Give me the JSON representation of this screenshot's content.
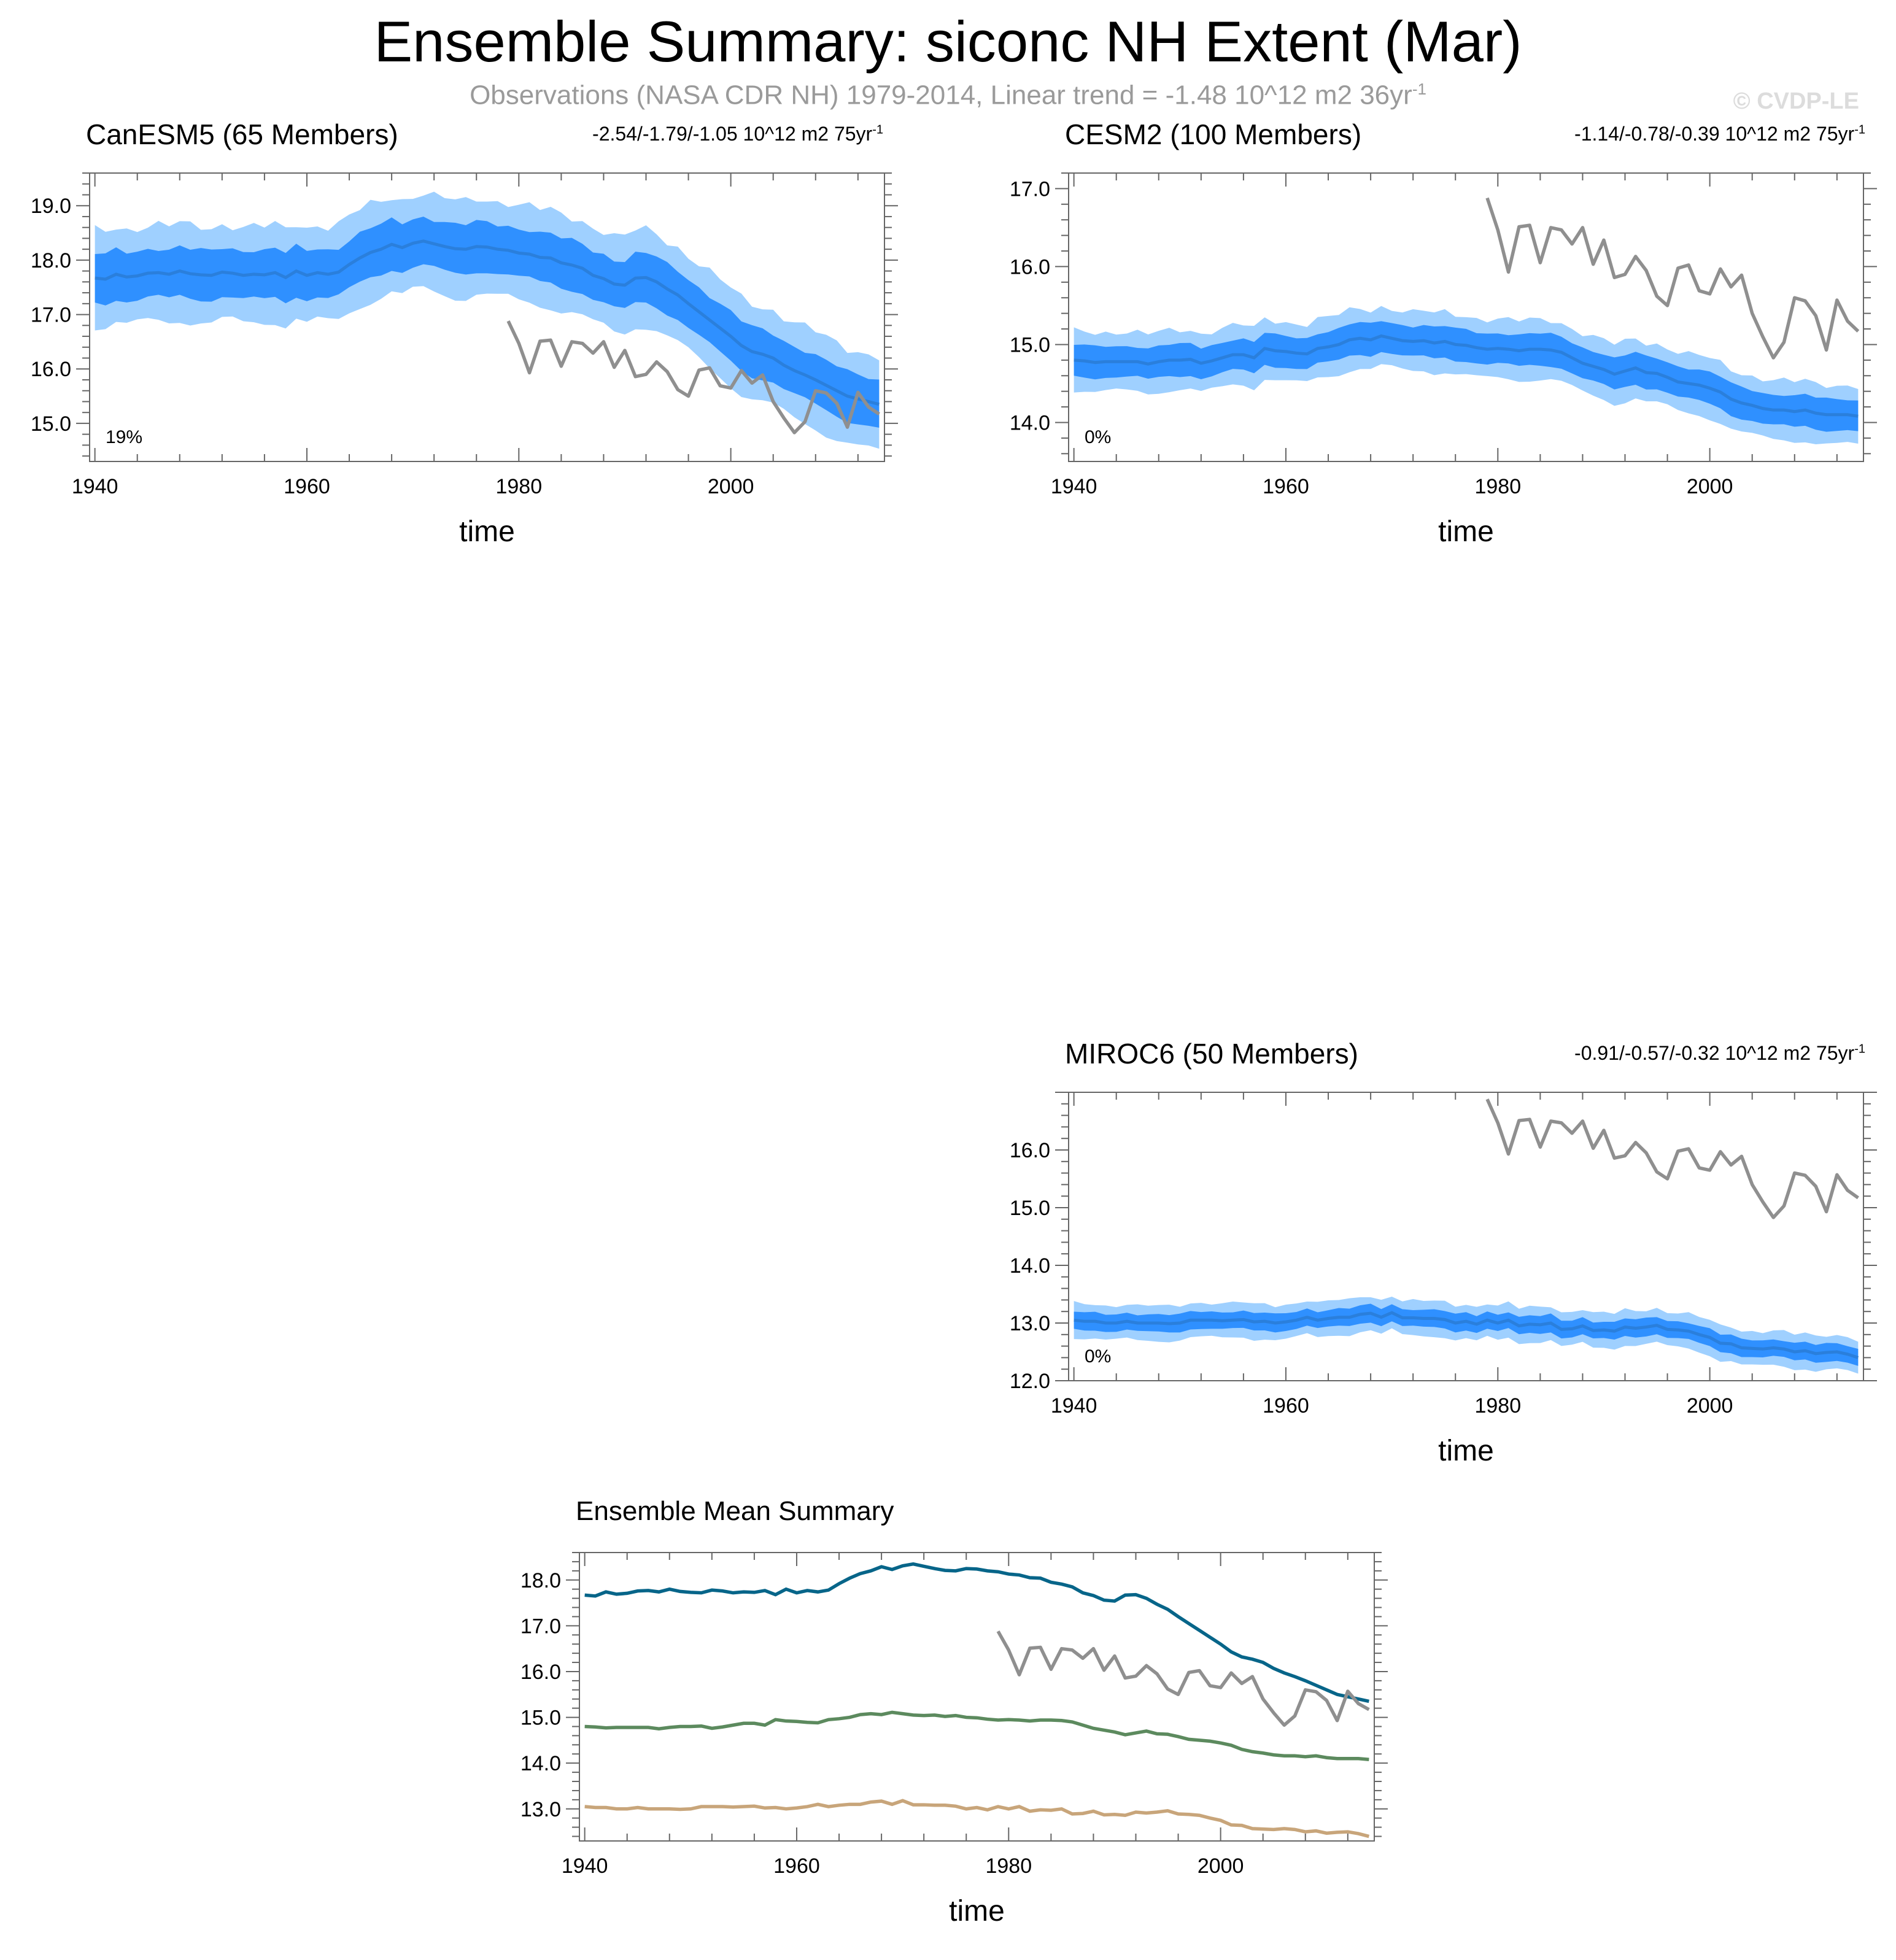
{
  "page": {
    "title": "Ensemble Summary: siconc NH Extent (Mar)",
    "subtitle": "Observations (NASA CDR NH) 1979-2014, Linear trend = -1.48 10^12 m2 36yr",
    "subtitle_sup": "-1",
    "watermark": "© CVDP-LE"
  },
  "colors": {
    "outer_band": "#9fd0ff",
    "inner_band": "#2f90ff",
    "mean_line": "#2a7fdc",
    "obs": "#8f8f8f",
    "canesm5": "#076589",
    "cesm2": "#5c8a5e",
    "miroc6": "#c8a57a"
  },
  "chart_data": [
    {
      "id": "canesm5",
      "type": "line",
      "title": "CanESM5 (65 Members)",
      "title_color": "#076589",
      "trend_label": "-2.54/-1.79/-1.05 10^12 m2 75yr",
      "trend_sup": "-1",
      "percent_label": "19%",
      "xlabel": "time",
      "xlim": [
        1939.5,
        2014.5
      ],
      "ylim": [
        14.3,
        19.6
      ],
      "xticks": [
        1940,
        1960,
        1980,
        2000
      ],
      "yticks": [
        15.0,
        16.0,
        17.0,
        18.0,
        19.0
      ],
      "ytick_labels": [
        "15.0",
        "16.0",
        "17.0",
        "18.0",
        "19.0"
      ],
      "years_start": 1940,
      "series": [
        {
          "name": "ensemble-mean",
          "values": [
            17.67,
            17.65,
            17.74,
            17.69,
            17.71,
            17.76,
            17.77,
            17.74,
            17.8,
            17.75,
            17.73,
            17.72,
            17.78,
            17.76,
            17.72,
            17.74,
            17.73,
            17.77,
            17.68,
            17.8,
            17.72,
            17.77,
            17.74,
            17.78,
            17.92,
            18.04,
            18.14,
            18.2,
            18.29,
            18.23,
            18.31,
            18.35,
            18.3,
            18.25,
            18.21,
            18.2,
            18.25,
            18.24,
            18.2,
            18.18,
            18.13,
            18.11,
            18.05,
            18.04,
            17.95,
            17.91,
            17.85,
            17.72,
            17.66,
            17.56,
            17.54,
            17.67,
            17.68,
            17.6,
            17.47,
            17.36,
            17.2,
            17.05,
            16.9,
            16.75,
            16.6,
            16.43,
            16.32,
            16.27,
            16.2,
            16.07,
            15.97,
            15.89,
            15.8,
            15.7,
            15.6,
            15.5,
            15.45,
            15.4,
            15.35
          ]
        }
      ],
      "observations": {
        "name": "NASA CDR NH",
        "start": 1979,
        "values": [
          16.88,
          16.47,
          15.93,
          16.51,
          16.53,
          16.05,
          16.5,
          16.47,
          16.29,
          16.5,
          16.03,
          16.34,
          15.86,
          15.9,
          16.13,
          15.95,
          15.62,
          15.5,
          15.98,
          16.02,
          15.69,
          15.65,
          15.97,
          15.74,
          15.89,
          15.4,
          15.1,
          14.83,
          15.03,
          15.6,
          15.56,
          15.37,
          14.93,
          15.57,
          15.3,
          15.17
        ]
      },
      "spread_inner": 0.45,
      "spread_outer": 0.88
    },
    {
      "id": "cesm2",
      "type": "line",
      "title": "CESM2 (100 Members)",
      "title_color": "#5c8a5e",
      "trend_label": "-1.14/-0.78/-0.39 10^12 m2 75yr",
      "trend_sup": "-1",
      "percent_label": "0%",
      "xlabel": "time",
      "xlim": [
        1939.5,
        2014.5
      ],
      "ylim": [
        13.5,
        17.2
      ],
      "xticks": [
        1940,
        1960,
        1980,
        2000
      ],
      "yticks": [
        14.0,
        15.0,
        16.0,
        17.0
      ],
      "ytick_labels": [
        "14.0",
        "15.0",
        "16.0",
        "17.0"
      ],
      "years_start": 1940,
      "series": [
        {
          "name": "ensemble-mean",
          "values": [
            14.8,
            14.79,
            14.77,
            14.78,
            14.78,
            14.78,
            14.78,
            14.75,
            14.78,
            14.8,
            14.8,
            14.81,
            14.76,
            14.79,
            14.83,
            14.87,
            14.87,
            14.83,
            14.95,
            14.92,
            14.91,
            14.89,
            14.88,
            14.95,
            14.97,
            15.0,
            15.06,
            15.08,
            15.06,
            15.11,
            15.08,
            15.05,
            15.04,
            15.05,
            15.02,
            15.04,
            15.0,
            14.99,
            14.96,
            14.94,
            14.95,
            14.94,
            14.92,
            14.94,
            14.94,
            14.93,
            14.9,
            14.83,
            14.76,
            14.72,
            14.68,
            14.62,
            14.66,
            14.7,
            14.64,
            14.63,
            14.58,
            14.52,
            14.5,
            14.48,
            14.44,
            14.39,
            14.3,
            14.25,
            14.22,
            14.18,
            14.16,
            14.16,
            14.14,
            14.16,
            14.12,
            14.1,
            14.1,
            14.1,
            14.08
          ]
        }
      ],
      "observations": {
        "name": "NASA CDR NH",
        "start": 1979,
        "values": [
          16.88,
          16.47,
          15.93,
          16.51,
          16.53,
          16.05,
          16.5,
          16.47,
          16.29,
          16.5,
          16.03,
          16.34,
          15.86,
          15.9,
          16.13,
          15.95,
          15.62,
          15.5,
          15.98,
          16.02,
          15.69,
          15.65,
          15.97,
          15.74,
          15.89,
          15.4,
          15.1,
          14.83,
          15.03,
          15.6,
          15.56,
          15.37,
          14.93,
          15.57,
          15.3,
          15.17
        ]
      },
      "spread_inner": 0.2,
      "spread_outer": 0.38
    },
    {
      "id": "miroc6",
      "type": "line",
      "title": "MIROC6 (50 Members)",
      "title_color": "#c8a57a",
      "trend_label": "-0.91/-0.57/-0.32 10^12 m2 75yr",
      "trend_sup": "-1",
      "percent_label": "0%",
      "xlabel": "time",
      "xlim": [
        1939.5,
        2014.5
      ],
      "ylim": [
        12.0,
        17.0
      ],
      "xticks": [
        1940,
        1960,
        1980,
        2000
      ],
      "yticks": [
        12.0,
        13.0,
        14.0,
        15.0,
        16.0
      ],
      "ytick_labels": [
        "12.0",
        "13.0",
        "14.0",
        "15.0",
        "16.0"
      ],
      "years_start": 1940,
      "series": [
        {
          "name": "ensemble-mean",
          "values": [
            13.05,
            13.03,
            13.03,
            13.0,
            13.0,
            13.03,
            13.0,
            13.0,
            13.0,
            12.99,
            13.0,
            13.05,
            13.05,
            13.05,
            13.04,
            13.05,
            13.06,
            13.02,
            13.03,
            13.0,
            13.02,
            13.05,
            13.1,
            13.05,
            13.08,
            13.1,
            13.1,
            13.15,
            13.17,
            13.1,
            13.18,
            13.09,
            13.09,
            13.08,
            13.08,
            13.06,
            13.0,
            13.03,
            12.98,
            13.05,
            13.0,
            13.05,
            12.95,
            12.98,
            12.97,
            13.0,
            12.89,
            12.9,
            12.95,
            12.87,
            12.88,
            12.86,
            12.93,
            12.91,
            12.93,
            12.96,
            12.89,
            12.88,
            12.86,
            12.8,
            12.75,
            12.65,
            12.64,
            12.57,
            12.56,
            12.55,
            12.57,
            12.55,
            12.5,
            12.52,
            12.47,
            12.49,
            12.5,
            12.46,
            12.4
          ]
        }
      ],
      "observations": {
        "name": "NASA CDR NH",
        "start": 1979,
        "values": [
          16.88,
          16.47,
          15.93,
          16.51,
          16.53,
          16.05,
          16.5,
          16.47,
          16.29,
          16.5,
          16.03,
          16.34,
          15.86,
          15.9,
          16.13,
          15.95,
          15.62,
          15.5,
          15.98,
          16.02,
          15.69,
          15.65,
          15.97,
          15.74,
          15.89,
          15.4,
          15.1,
          14.83,
          15.03,
          15.6,
          15.56,
          15.37,
          14.93,
          15.57,
          15.3,
          15.17
        ]
      },
      "spread_inner": 0.15,
      "spread_outer": 0.3
    },
    {
      "id": "summary",
      "type": "line",
      "title": "Ensemble Mean Summary",
      "title_color": "#000000",
      "xlabel": "time",
      "xlim": [
        1939.5,
        2014.5
      ],
      "ylim": [
        12.3,
        18.6
      ],
      "xticks": [
        1940,
        1960,
        1980,
        2000
      ],
      "yticks": [
        13.0,
        14.0,
        15.0,
        16.0,
        17.0,
        18.0
      ],
      "ytick_labels": [
        "13.0",
        "14.0",
        "15.0",
        "16.0",
        "17.0",
        "18.0"
      ],
      "years_start": 1940,
      "series": [
        {
          "name": "CanESM5",
          "ref": "canesm5",
          "color": "#076589"
        },
        {
          "name": "CESM2",
          "ref": "cesm2",
          "color": "#5c8a5e"
        },
        {
          "name": "MIROC6",
          "ref": "miroc6",
          "color": "#c8a57a"
        }
      ],
      "observations": {
        "name": "NASA CDR NH",
        "start": 1979,
        "values": [
          16.88,
          16.47,
          15.93,
          16.51,
          16.53,
          16.05,
          16.5,
          16.47,
          16.29,
          16.5,
          16.03,
          16.34,
          15.86,
          15.9,
          16.13,
          15.95,
          15.62,
          15.5,
          15.98,
          16.02,
          15.69,
          15.65,
          15.97,
          15.74,
          15.89,
          15.4,
          15.1,
          14.83,
          15.03,
          15.6,
          15.56,
          15.37,
          14.93,
          15.57,
          15.3,
          15.17
        ]
      }
    }
  ]
}
